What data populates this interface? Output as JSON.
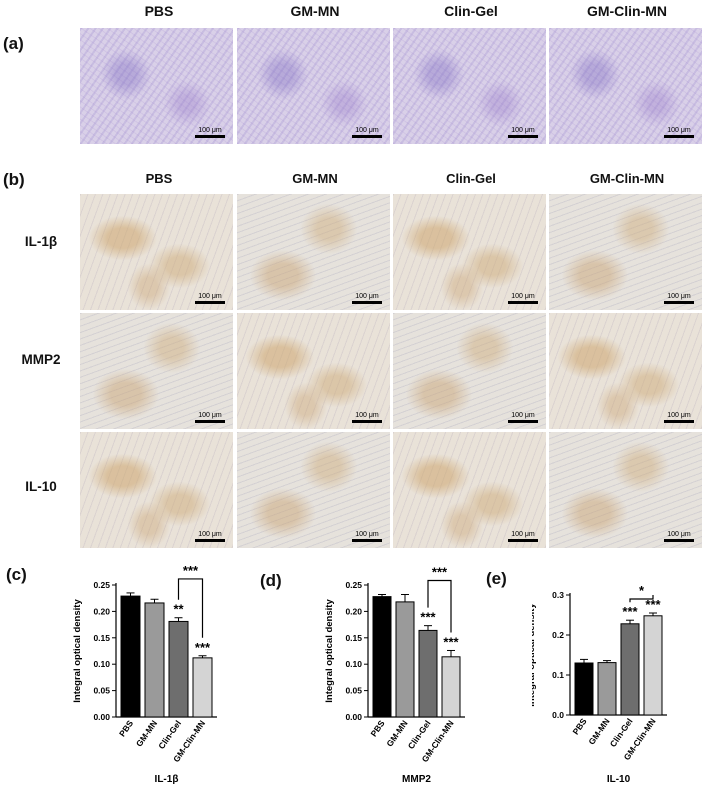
{
  "panel_labels": {
    "a": "(a)",
    "b": "(b)",
    "c": "(c)",
    "d": "(d)",
    "e": "(e)"
  },
  "groups": [
    "PBS",
    "GM-MN",
    "Clin-Gel",
    "GM-Clin-MN"
  ],
  "rows_b": [
    "IL-1β",
    "MMP2",
    "IL-10"
  ],
  "scale_bar": "100 μm",
  "colors": {
    "bar_PBS": "#000000",
    "bar_GM-MN": "#9a9a9a",
    "bar_Clin-Gel": "#6e6e6e",
    "bar_GM-Clin-MN": "#d4d4d4"
  },
  "chart_data": [
    {
      "type": "bar",
      "categories": [
        "PBS",
        "GM-MN",
        "Clin-Gel",
        "GM-Clin-MN"
      ],
      "values": [
        0.229,
        0.216,
        0.181,
        0.112
      ],
      "errors": [
        0.006,
        0.007,
        0.007,
        0.004
      ],
      "xlabel": "IL-1β",
      "ylabel": "Integral optical density",
      "ylim": [
        0,
        0.25
      ],
      "yticks": [
        "0.00",
        "0.05",
        "0.10",
        "0.15",
        "0.20",
        "0.25"
      ],
      "significance": [
        {
          "label": "**",
          "bar": 2
        },
        {
          "label": "***",
          "bar": 3
        }
      ],
      "bracket": {
        "label": "***",
        "from": 2,
        "to": 3
      }
    },
    {
      "type": "bar",
      "categories": [
        "PBS",
        "GM-MN",
        "Clin-Gel",
        "GM-Clin-MN"
      ],
      "values": [
        0.228,
        0.218,
        0.164,
        0.114
      ],
      "errors": [
        0.004,
        0.014,
        0.009,
        0.012
      ],
      "xlabel": "MMP2",
      "ylabel": "Integral optical density",
      "ylim": [
        0,
        0.25
      ],
      "yticks": [
        "0.00",
        "0.05",
        "0.10",
        "0.15",
        "0.20",
        "0.25"
      ],
      "significance": [
        {
          "label": "***",
          "bar": 2
        },
        {
          "label": "***",
          "bar": 3
        }
      ],
      "bracket": {
        "label": "***",
        "from": 2,
        "to": 3
      }
    },
    {
      "type": "bar",
      "categories": [
        "PBS",
        "GM-MN",
        "Clin-Gel",
        "GM-Clin-MN"
      ],
      "values": [
        0.13,
        0.131,
        0.228,
        0.248
      ],
      "errors": [
        0.009,
        0.005,
        0.009,
        0.007
      ],
      "xlabel": "IL-10",
      "ylabel": "Integral optical density",
      "ylim": [
        0,
        0.3
      ],
      "yticks": [
        "0.0",
        "0.1",
        "0.2",
        "0.3"
      ],
      "significance": [
        {
          "label": "***",
          "bar": 2
        },
        {
          "label": "***",
          "bar": 3
        }
      ],
      "bracket": {
        "label": "*",
        "from": 2,
        "to": 3
      }
    }
  ]
}
